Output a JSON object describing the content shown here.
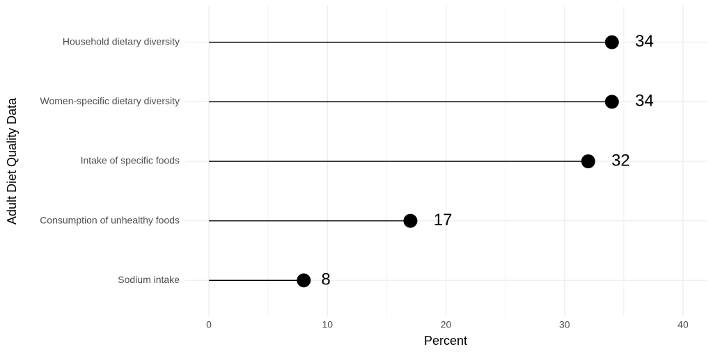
{
  "chart_data": {
    "type": "lollipop",
    "x_label": "Percent",
    "y_label": "Adult Diet Quality Data",
    "categories": [
      "Household dietary diversity",
      "Women-specific dietary diversity",
      "Intake of specific foods",
      "Consumption of unhealthy foods",
      "Sodium intake"
    ],
    "values": [
      34,
      34,
      32,
      17,
      8
    ],
    "color": "#000000",
    "xlim": [
      -2,
      42
    ],
    "xticks": [
      0,
      10,
      20,
      30,
      40
    ],
    "x_minor_ticks": [
      5,
      15,
      25,
      35
    ],
    "grid": true
  }
}
